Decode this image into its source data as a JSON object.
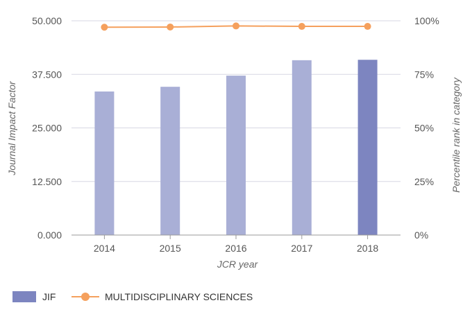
{
  "chart_data": {
    "type": "bar",
    "categories": [
      "2014",
      "2015",
      "2016",
      "2017",
      "2018"
    ],
    "xlabel": "JCR year",
    "ylabel": "Journal Impact Factor",
    "y2label": "Percentile rank in category",
    "ylim": [
      0,
      50
    ],
    "y2lim": [
      0,
      100
    ],
    "yticks": [
      "0.000",
      "12.500",
      "25.000",
      "37.500",
      "50.000"
    ],
    "y2ticks": [
      "0%",
      "25%",
      "50%",
      "75%",
      "100%"
    ],
    "grid": true,
    "legend_position": "bottom-left",
    "series": [
      {
        "name": "JIF",
        "type": "bar",
        "axis": "left",
        "values": [
          33.5,
          34.6,
          37.2,
          40.8,
          40.9
        ],
        "color": "#a9afd6",
        "highlight_color": "#7d85c0",
        "highlight_index": 4
      },
      {
        "name": "MULTIDISCIPLINARY SCIENCES",
        "type": "line",
        "axis": "right",
        "values": [
          97.0,
          97.1,
          97.6,
          97.4,
          97.4
        ],
        "color": "#f5a05d"
      }
    ]
  }
}
